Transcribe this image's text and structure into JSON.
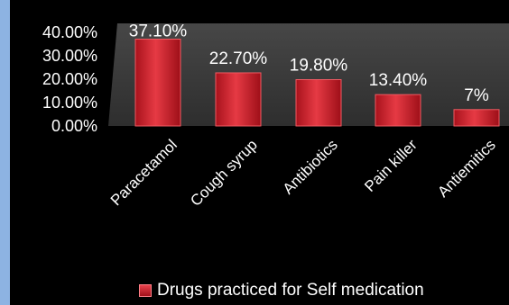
{
  "chart_data": {
    "type": "bar",
    "categories": [
      "Paracetamol",
      "Cough syrup",
      "Antibiotics",
      "Pain killer",
      "Antiemitics"
    ],
    "series": [
      {
        "name": "Drugs practiced for Self medication",
        "values": [
          37.1,
          22.7,
          19.8,
          13.4,
          7.0
        ]
      }
    ],
    "data_labels": [
      "37.10%",
      "22.70%",
      "19.80%",
      "13.40%",
      "7%"
    ],
    "y_ticks": [
      0,
      10,
      20,
      30,
      40
    ],
    "y_tick_labels": [
      "0.00%",
      "10.00%",
      "20.00%",
      "30.00%",
      "40.00%"
    ],
    "ylim": [
      0,
      40
    ],
    "grid": false,
    "legend_position": "bottom",
    "colors": {
      "background": "#000000",
      "plot_area": "#3b3b3b",
      "bar": "#d4202c",
      "accent_strip": "#8db3e2",
      "text": "#ffffff"
    }
  }
}
